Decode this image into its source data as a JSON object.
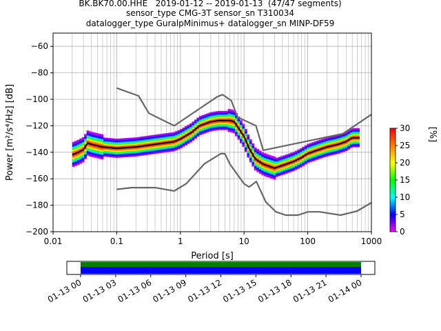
{
  "title": {
    "line1": "BK.BK70.00.HHE   2019-01-12 -- 2019-01-13  (47/47 segments)",
    "line2": "sensor_type CMG-3T sensor_sn T310034",
    "line3": "datalogger_type GuralpMinimus+ datalogger_sn MINP-DF59"
  },
  "chart_data": [
    {
      "type": "heatmap",
      "xlabel": "Period [s]",
      "ylabel": "Power [m²/s⁴/Hz] [dB]",
      "xscale": "log",
      "xlim": [
        0.01,
        1000
      ],
      "ylim": [
        -200,
        -50
      ],
      "xticks": [
        0.01,
        0.1,
        1,
        10,
        100,
        1000
      ],
      "xtick_labels": [
        "0.01",
        "0.1",
        "1",
        "10",
        "100",
        "1000"
      ],
      "yticks": [
        -200,
        -180,
        -160,
        -140,
        -120,
        -100,
        -80,
        -60
      ],
      "grid": true,
      "colorbar": {
        "label": "[%]",
        "range": [
          0,
          30
        ],
        "ticks": [
          0,
          5,
          10,
          15,
          20,
          25,
          30
        ],
        "colormap": [
          "#ff00ff",
          "#0000ff",
          "#00ffff",
          "#00ff00",
          "#ffff00",
          "#ff8000",
          "#ff0000"
        ]
      },
      "series": [
        {
          "name": "",
          "role": "median",
          "color": "#000000",
          "x": [
            0.02,
            0.025,
            0.03,
            0.035,
            0.04,
            0.06,
            0.1,
            0.2,
            0.4,
            0.8,
            1.0,
            1.5,
            2.0,
            3.0,
            4.0,
            5.0,
            6.0,
            7.0,
            8.0,
            10.0,
            12.0,
            15.0,
            20.0,
            30.0,
            40.0,
            60.0,
            80.0,
            100.0,
            150.0,
            200.0,
            300.0,
            400.0,
            500.0,
            650.0
          ],
          "y": [
            -142,
            -140,
            -138,
            -133,
            -134,
            -136,
            -137,
            -136,
            -134,
            -132,
            -130,
            -125,
            -120,
            -117,
            -116,
            -116,
            -116,
            -117,
            -121,
            -128,
            -137,
            -145,
            -149,
            -152,
            -150,
            -147,
            -144,
            -141,
            -138,
            -136,
            -134,
            -132,
            -129,
            -129
          ]
        },
        {
          "name": "",
          "role": "noise-model-high",
          "color": "#666666",
          "x": [
            0.1,
            0.22,
            0.32,
            0.8,
            3.8,
            4.6,
            6.3,
            7.9,
            15.4,
            20.0,
            354.8,
            1000.0
          ],
          "y": [
            -91.5,
            -97.4,
            -110.5,
            -120.0,
            -98.0,
            -96.5,
            -101.0,
            -113.5,
            -120.0,
            -138.5,
            -126.0,
            -111.5
          ]
        },
        {
          "name": "",
          "role": "noise-model-low",
          "color": "#666666",
          "x": [
            0.1,
            0.17,
            0.4,
            0.8,
            1.24,
            2.4,
            4.3,
            5.0,
            6.0,
            10.0,
            12.0,
            15.6,
            21.9,
            31.6,
            45.0,
            70.0,
            101.0,
            154.0,
            328.0,
            600.0,
            1000.0
          ],
          "y": [
            -168.0,
            -166.7,
            -166.7,
            -169.2,
            -163.7,
            -148.6,
            -141.1,
            -141.1,
            -149.0,
            -163.8,
            -166.2,
            -162.1,
            -177.5,
            -185.0,
            -187.5,
            -187.5,
            -185.0,
            -185.0,
            -187.5,
            -184.4,
            -178.0
          ]
        }
      ]
    },
    {
      "type": "timeline",
      "xlim": [
        "01-13 00",
        "01-14 00"
      ],
      "xtick_labels": [
        "01-13 00",
        "01-13 03",
        "01-13 06",
        "01-13 09",
        "01-13 12",
        "01-13 15",
        "01-13 18",
        "01-13 21",
        "01-14 00"
      ],
      "bands": [
        {
          "role": "data",
          "color": "#008000",
          "start": "01-13 00",
          "end": "01-14 00"
        },
        {
          "role": "psd",
          "color": "#0000ff",
          "start": "01-13 00",
          "end": "01-14 00"
        }
      ]
    }
  ]
}
